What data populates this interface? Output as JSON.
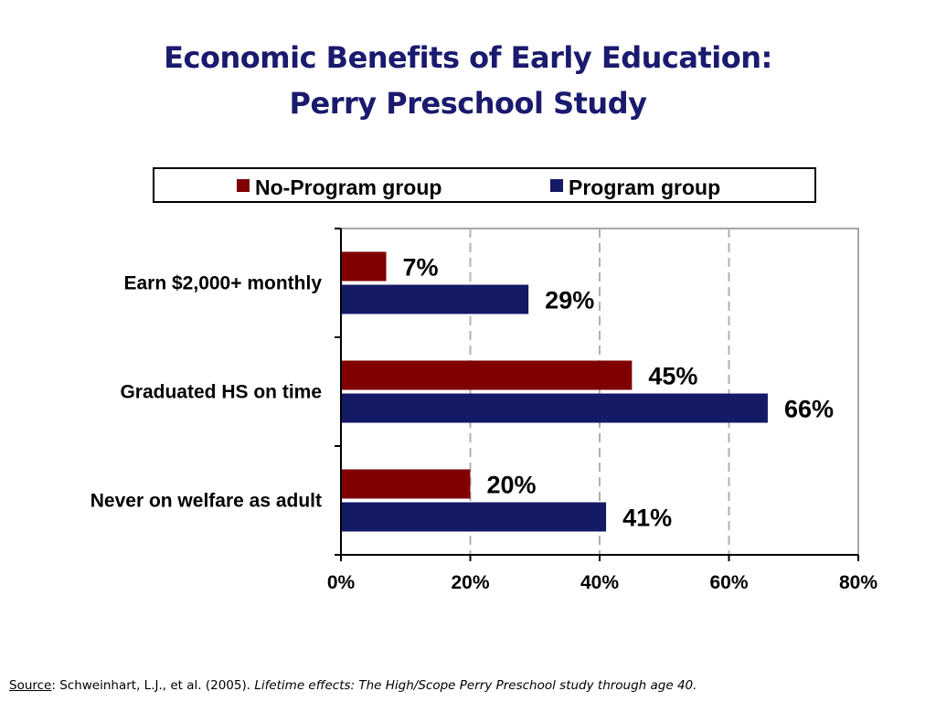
{
  "slide": {
    "title_line1": "Economic Benefits of Early Education:",
    "title_line2": "Perry Preschool Study"
  },
  "source": {
    "label": "Source",
    "authors": ": Schweinhart, L.J., et al. (2005). ",
    "work_title": "Lifetime effects: The High/Scope Perry Preschool study through age 40."
  },
  "colors": {
    "no_program": "#7f0000",
    "program": "#141a66",
    "gridline": "#b0b0b0",
    "title": "#1a1a6e"
  },
  "chart_data": {
    "type": "bar",
    "orientation": "horizontal",
    "categories": [
      "Earn $2,000+ monthly",
      "Graduated HS on time",
      "Never on welfare as adult"
    ],
    "series": [
      {
        "name": "No-Program group",
        "values": [
          7,
          45,
          20
        ],
        "labels": [
          "7%",
          "45%",
          "20%"
        ]
      },
      {
        "name": "Program group",
        "values": [
          29,
          66,
          41
        ],
        "labels": [
          "29%",
          "66%",
          "41%"
        ]
      }
    ],
    "xlim": [
      0,
      80
    ],
    "xticks": [
      0,
      20,
      40,
      60,
      80
    ],
    "xtick_labels": [
      "0%",
      "20%",
      "40%",
      "60%",
      "80%"
    ],
    "grid": true,
    "legend_position": "top"
  }
}
